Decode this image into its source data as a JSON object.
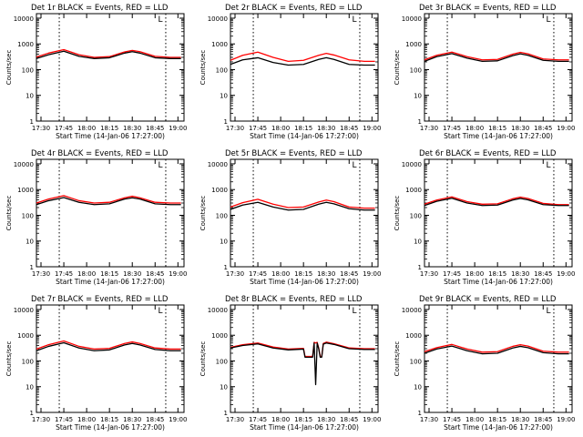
{
  "page": {
    "background": "#ffffff",
    "axis_color": "#000000",
    "events_color": "#000000",
    "lld_color": "#ff0000"
  },
  "chart_data": [
    {
      "type": "line",
      "title": "Det 1r BLACK = Events, RED = LLD",
      "marker": "L",
      "xlabel": "Start Time (14-Jan-06 17:27:00)",
      "ylabel": "Counts/sec",
      "xticks": [
        "17:30",
        "17:45",
        "18:00",
        "18:15",
        "18:30",
        "18:45",
        "19:00"
      ],
      "yticks": [
        "1",
        "10",
        "100",
        "1000",
        "10000"
      ],
      "yscale": "log",
      "ylim": [
        1,
        15000
      ],
      "xlim": [
        "17:27",
        "19:04"
      ],
      "vlines": [
        "17:42",
        "18:52"
      ],
      "x": [
        "17:27",
        "17:35",
        "17:45",
        "17:55",
        "18:05",
        "18:15",
        "18:25",
        "18:30",
        "18:35",
        "18:45",
        "18:55",
        "19:02"
      ],
      "series": [
        {
          "name": "Events",
          "values": [
            270,
            380,
            520,
            330,
            270,
            290,
            440,
            500,
            440,
            290,
            270,
            270
          ]
        },
        {
          "name": "LLD",
          "values": [
            310,
            440,
            600,
            380,
            300,
            320,
            490,
            560,
            500,
            330,
            300,
            300
          ]
        }
      ]
    },
    {
      "type": "line",
      "title": "Det 2r BLACK = Events, RED = LLD",
      "marker": "L",
      "xlabel": "Start Time (14-Jan-06 17:27:00)",
      "ylabel": "Counts/sec",
      "xticks": [
        "17:30",
        "17:45",
        "18:00",
        "18:15",
        "18:30",
        "18:45",
        "19:00"
      ],
      "yticks": [
        "1",
        "10",
        "100",
        "1000",
        "10000"
      ],
      "yscale": "log",
      "ylim": [
        1,
        15000
      ],
      "xlim": [
        "17:27",
        "19:04"
      ],
      "vlines": [
        "17:42",
        "18:52"
      ],
      "x": [
        "17:27",
        "17:35",
        "17:45",
        "17:55",
        "18:05",
        "18:15",
        "18:25",
        "18:30",
        "18:35",
        "18:45",
        "18:55",
        "19:02"
      ],
      "series": [
        {
          "name": "Events",
          "values": [
            160,
            240,
            290,
            190,
            150,
            160,
            250,
            290,
            250,
            160,
            150,
            150
          ]
        },
        {
          "name": "LLD",
          "values": [
            230,
            360,
            480,
            300,
            210,
            230,
            360,
            430,
            370,
            240,
            210,
            210
          ]
        }
      ]
    },
    {
      "type": "line",
      "title": "Det 3r BLACK = Events, RED = LLD",
      "marker": "L",
      "xlabel": "Start Time (14-Jan-06 17:27:00)",
      "ylabel": "Counts/sec",
      "xticks": [
        "17:30",
        "17:45",
        "18:00",
        "18:15",
        "18:30",
        "18:45",
        "19:00"
      ],
      "yticks": [
        "1",
        "10",
        "100",
        "1000",
        "10000"
      ],
      "yscale": "log",
      "ylim": [
        1,
        15000
      ],
      "xlim": [
        "17:27",
        "19:04"
      ],
      "vlines": [
        "17:42",
        "18:52"
      ],
      "x": [
        "17:27",
        "17:35",
        "17:45",
        "17:55",
        "18:05",
        "18:15",
        "18:25",
        "18:30",
        "18:35",
        "18:45",
        "18:55",
        "19:02"
      ],
      "series": [
        {
          "name": "Events",
          "values": [
            210,
            320,
            420,
            280,
            210,
            220,
            350,
            410,
            360,
            230,
            210,
            210
          ]
        },
        {
          "name": "LLD",
          "values": [
            240,
            360,
            480,
            320,
            240,
            250,
            400,
            470,
            410,
            260,
            240,
            240
          ]
        }
      ]
    },
    {
      "type": "line",
      "title": "Det 4r BLACK = Events, RED = LLD",
      "marker": "L",
      "xlabel": "Start Time (14-Jan-06 17:27:00)",
      "ylabel": "Counts/sec",
      "xticks": [
        "17:30",
        "17:45",
        "18:00",
        "18:15",
        "18:30",
        "18:45",
        "19:00"
      ],
      "yticks": [
        "1",
        "10",
        "100",
        "1000",
        "10000"
      ],
      "yscale": "log",
      "ylim": [
        1,
        15000
      ],
      "xlim": [
        "17:27",
        "19:04"
      ],
      "vlines": [
        "17:42",
        "18:52"
      ],
      "x": [
        "17:27",
        "17:35",
        "17:45",
        "17:55",
        "18:05",
        "18:15",
        "18:25",
        "18:30",
        "18:35",
        "18:45",
        "18:55",
        "19:02"
      ],
      "series": [
        {
          "name": "Events",
          "values": [
            260,
            370,
            490,
            320,
            260,
            280,
            430,
            480,
            430,
            280,
            260,
            260
          ]
        },
        {
          "name": "LLD",
          "values": [
            300,
            430,
            580,
            370,
            300,
            320,
            480,
            550,
            480,
            320,
            300,
            300
          ]
        }
      ]
    },
    {
      "type": "line",
      "title": "Det 5r BLACK = Events, RED = LLD",
      "marker": "L",
      "xlabel": "Start Time (14-Jan-06 17:27:00)",
      "ylabel": "Counts/sec",
      "xticks": [
        "17:30",
        "17:45",
        "18:00",
        "18:15",
        "18:30",
        "18:45",
        "19:00"
      ],
      "yticks": [
        "1",
        "10",
        "100",
        "1000",
        "10000"
      ],
      "yscale": "log",
      "ylim": [
        1,
        15000
      ],
      "xlim": [
        "17:27",
        "19:04"
      ],
      "vlines": [
        "17:42",
        "18:52"
      ],
      "x": [
        "17:27",
        "17:35",
        "17:45",
        "17:55",
        "18:05",
        "18:15",
        "18:25",
        "18:30",
        "18:35",
        "18:45",
        "18:55",
        "19:02"
      ],
      "series": [
        {
          "name": "Events",
          "values": [
            170,
            250,
            320,
            210,
            160,
            170,
            270,
            320,
            280,
            180,
            160,
            160
          ]
        },
        {
          "name": "LLD",
          "values": [
            210,
            310,
            420,
            270,
            200,
            210,
            330,
            390,
            340,
            210,
            190,
            190
          ]
        }
      ]
    },
    {
      "type": "line",
      "title": "Det 6r BLACK = Events, RED = LLD",
      "marker": "L",
      "xlabel": "Start Time (14-Jan-06 17:27:00)",
      "ylabel": "Counts/sec",
      "xticks": [
        "17:30",
        "17:45",
        "18:00",
        "18:15",
        "18:30",
        "18:45",
        "19:00"
      ],
      "yticks": [
        "1",
        "10",
        "100",
        "1000",
        "10000"
      ],
      "yscale": "log",
      "ylim": [
        1,
        15000
      ],
      "xlim": [
        "17:27",
        "19:04"
      ],
      "vlines": [
        "17:42",
        "18:52"
      ],
      "x": [
        "17:27",
        "17:35",
        "17:45",
        "17:55",
        "18:05",
        "18:15",
        "18:25",
        "18:30",
        "18:35",
        "18:45",
        "18:55",
        "19:02"
      ],
      "series": [
        {
          "name": "Events",
          "values": [
            240,
            350,
            460,
            300,
            240,
            250,
            390,
            450,
            400,
            260,
            240,
            240
          ]
        },
        {
          "name": "LLD",
          "values": [
            270,
            390,
            520,
            340,
            270,
            280,
            440,
            510,
            450,
            290,
            260,
            260
          ]
        }
      ]
    },
    {
      "type": "line",
      "title": "Det 7r BLACK = Events, RED = LLD",
      "marker": "L",
      "xlabel": "Start Time (14-Jan-06 17:27:00)",
      "ylabel": "Counts/sec",
      "xticks": [
        "17:30",
        "17:45",
        "18:00",
        "18:15",
        "18:30",
        "18:45",
        "19:00"
      ],
      "yticks": [
        "1",
        "10",
        "100",
        "1000",
        "10000"
      ],
      "yscale": "log",
      "ylim": [
        1,
        15000
      ],
      "xlim": [
        "17:27",
        "19:04"
      ],
      "vlines": [
        "17:42",
        "18:52"
      ],
      "x": [
        "17:27",
        "17:35",
        "17:45",
        "17:55",
        "18:05",
        "18:15",
        "18:25",
        "18:30",
        "18:35",
        "18:45",
        "18:55",
        "19:02"
      ],
      "series": [
        {
          "name": "Events",
          "values": [
            250,
            370,
            510,
            320,
            250,
            270,
            420,
            480,
            420,
            280,
            250,
            250
          ]
        },
        {
          "name": "LLD",
          "values": [
            290,
            430,
            600,
            370,
            290,
            310,
            480,
            550,
            480,
            320,
            290,
            290
          ]
        }
      ]
    },
    {
      "type": "line",
      "title": "Det 8r BLACK = Events, RED = LLD",
      "marker": "L",
      "xlabel": "Start Time (14-Jan-06 17:27:00)",
      "ylabel": "Counts/sec",
      "xticks": [
        "17:30",
        "17:45",
        "18:00",
        "18:15",
        "18:30",
        "18:45",
        "19:00"
      ],
      "yticks": [
        "1",
        "10",
        "100",
        "1000",
        "10000"
      ],
      "yscale": "log",
      "ylim": [
        1,
        15000
      ],
      "xlim": [
        "17:27",
        "19:04"
      ],
      "vlines": [
        "17:42",
        "18:52"
      ],
      "x": [
        "17:27",
        "17:35",
        "17:45",
        "17:55",
        "18:05",
        "18:15",
        "18:16",
        "18:21",
        "18:22",
        "18:23",
        "18:24",
        "18:25",
        "18:26",
        "18:27",
        "18:28",
        "18:30",
        "18:35",
        "18:45",
        "18:55",
        "19:02"
      ],
      "series": [
        {
          "name": "Events",
          "values": [
            320,
            400,
            460,
            320,
            270,
            290,
            140,
            140,
            500,
            12,
            500,
            300,
            140,
            140,
            450,
            500,
            440,
            300,
            280,
            280
          ]
        },
        {
          "name": "LLD",
          "values": [
            340,
            430,
            500,
            350,
            290,
            310,
            150,
            150,
            530,
            500,
            530,
            320,
            150,
            150,
            480,
            540,
            470,
            320,
            300,
            300
          ]
        }
      ]
    },
    {
      "type": "line",
      "title": "Det 9r BLACK = Events, RED = LLD",
      "marker": "L",
      "xlabel": "Start Time (14-Jan-06 17:27:00)",
      "ylabel": "Counts/sec",
      "xticks": [
        "17:30",
        "17:45",
        "18:00",
        "18:15",
        "18:30",
        "18:45",
        "19:00"
      ],
      "yticks": [
        "1",
        "10",
        "100",
        "1000",
        "10000"
      ],
      "yscale": "log",
      "ylim": [
        1,
        15000
      ],
      "xlim": [
        "17:27",
        "19:04"
      ],
      "vlines": [
        "17:42",
        "18:52"
      ],
      "x": [
        "17:27",
        "17:35",
        "17:45",
        "17:55",
        "18:05",
        "18:15",
        "18:25",
        "18:30",
        "18:35",
        "18:45",
        "18:55",
        "19:02"
      ],
      "series": [
        {
          "name": "Events",
          "values": [
            200,
            290,
            380,
            250,
            190,
            200,
            320,
            370,
            330,
            210,
            190,
            190
          ]
        },
        {
          "name": "LLD",
          "values": [
            230,
            330,
            440,
            290,
            220,
            230,
            370,
            430,
            380,
            240,
            220,
            220
          ]
        }
      ]
    }
  ]
}
